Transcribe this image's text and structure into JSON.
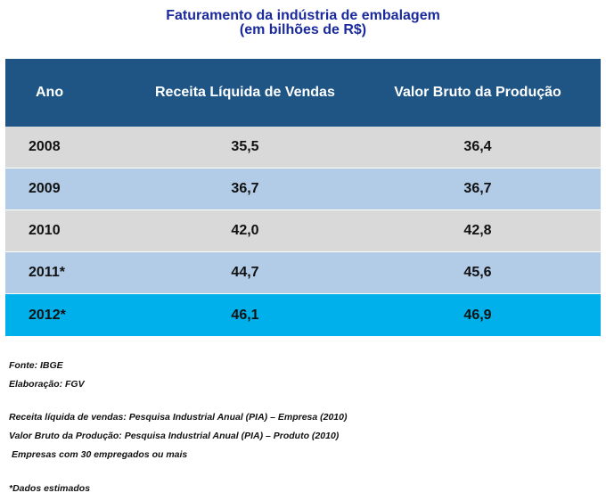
{
  "title": {
    "line1": "Faturamento da indústria de embalagem",
    "line2": "(em bilhões de R$)"
  },
  "chart_data": {
    "type": "table",
    "title": "Faturamento da indústria de embalagem (em bilhões de R$)",
    "columns": [
      "Ano",
      "Receita Líquida de Vendas",
      "Valor Bruto da Produção"
    ],
    "rows": [
      [
        "2008",
        "35,5",
        "36,4"
      ],
      [
        "2009",
        "36,7",
        "36,7"
      ],
      [
        "2010",
        "42,0",
        "42,8"
      ],
      [
        "2011*",
        "44,7",
        "45,6"
      ],
      [
        "2012*",
        "46,1",
        "46,9"
      ]
    ]
  },
  "notes": {
    "fonte": "Fonte: IBGE",
    "elaboracao": "Elaboração: FGV",
    "receita": "Receita líquida de vendas:  Pesquisa Industrial Anual (PIA) – Empresa (2010)",
    "valor": "Valor Bruto da Produção:  Pesquisa Industrial Anual (PIA) – Produto (2010)",
    "empresas": "Empresas com 30 empregados ou mais",
    "estimados": "*Dados estimados"
  },
  "colors": {
    "header": "#1f5585",
    "row_gray": "#d9d9d9",
    "row_blue": "#b2cbe6",
    "row_highlight": "#00b0ea",
    "title": "#1a2a9c"
  }
}
